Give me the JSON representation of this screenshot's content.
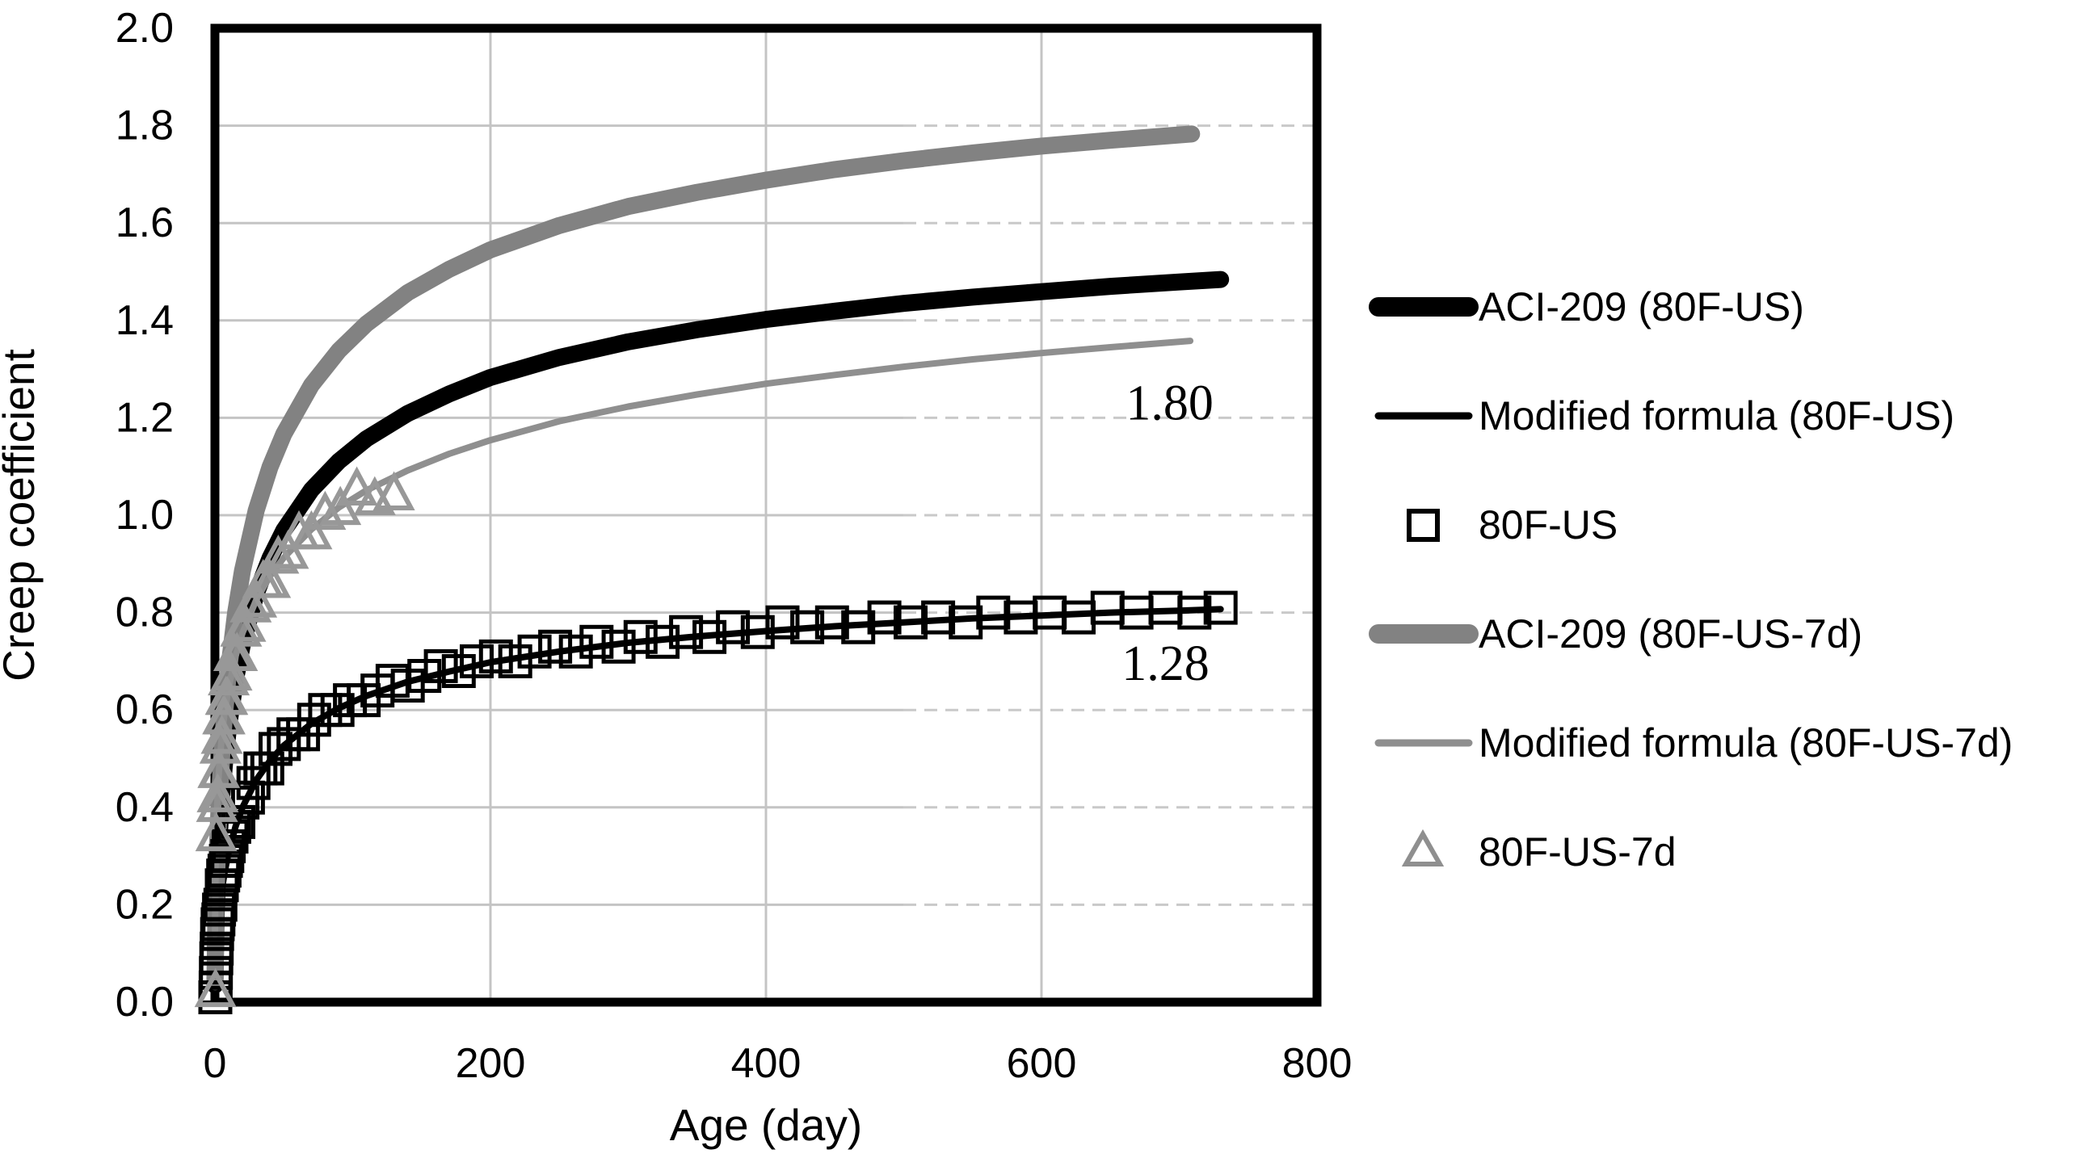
{
  "chart_data": {
    "type": "line",
    "title": "",
    "xlabel": "Age (day)",
    "ylabel": "Creep coefficient",
    "xlim": [
      0,
      800
    ],
    "ylim": [
      0.0,
      2.0
    ],
    "x_ticks": [
      "0",
      "200",
      "400",
      "600",
      "800"
    ],
    "y_ticks": [
      "0.0",
      "0.2",
      "0.4",
      "0.6",
      "0.8",
      "1.0",
      "1.2",
      "1.4",
      "1.6",
      "1.8",
      "2.0"
    ],
    "grid": true,
    "legend_position": "right",
    "annotations": [
      {
        "text": "1.80",
        "x": 693,
        "y": 1.23
      },
      {
        "text": "1.28",
        "x": 690,
        "y": 0.695
      }
    ],
    "series": [
      {
        "name": "ACI-209 (80F-US)",
        "type": "line",
        "color": "#000000",
        "stroke_width": 21,
        "points": [
          [
            0.05,
            0.035
          ],
          [
            0.5,
            0.13
          ],
          [
            1,
            0.19
          ],
          [
            2,
            0.272
          ],
          [
            3,
            0.333
          ],
          [
            5,
            0.423
          ],
          [
            7,
            0.49
          ],
          [
            10,
            0.568
          ],
          [
            15,
            0.664
          ],
          [
            20,
            0.735
          ],
          [
            30,
            0.839
          ],
          [
            40,
            0.912
          ],
          [
            50,
            0.969
          ],
          [
            70,
            1.052
          ],
          [
            90,
            1.111
          ],
          [
            110,
            1.157
          ],
          [
            140,
            1.209
          ],
          [
            170,
            1.249
          ],
          [
            200,
            1.283
          ],
          [
            250,
            1.324
          ],
          [
            300,
            1.356
          ],
          [
            350,
            1.381
          ],
          [
            400,
            1.402
          ],
          [
            450,
            1.419
          ],
          [
            500,
            1.435
          ],
          [
            550,
            1.448
          ],
          [
            600,
            1.459
          ],
          [
            650,
            1.47
          ],
          [
            700,
            1.479
          ],
          [
            730,
            1.484
          ]
        ]
      },
      {
        "name": "Modified formula (80F-US)",
        "type": "line",
        "color": "#000000",
        "stroke_width": 8,
        "points": [
          [
            0.05,
            0.019
          ],
          [
            0.5,
            0.071
          ],
          [
            1,
            0.103
          ],
          [
            2,
            0.148
          ],
          [
            3,
            0.181
          ],
          [
            5,
            0.23
          ],
          [
            7,
            0.266
          ],
          [
            10,
            0.309
          ],
          [
            15,
            0.361
          ],
          [
            20,
            0.4
          ],
          [
            30,
            0.456
          ],
          [
            40,
            0.496
          ],
          [
            50,
            0.527
          ],
          [
            70,
            0.572
          ],
          [
            90,
            0.604
          ],
          [
            110,
            0.629
          ],
          [
            140,
            0.658
          ],
          [
            170,
            0.679
          ],
          [
            200,
            0.698
          ],
          [
            250,
            0.72
          ],
          [
            300,
            0.738
          ],
          [
            350,
            0.751
          ],
          [
            400,
            0.762
          ],
          [
            450,
            0.772
          ],
          [
            500,
            0.78
          ],
          [
            550,
            0.788
          ],
          [
            600,
            0.794
          ],
          [
            650,
            0.8
          ],
          [
            700,
            0.804
          ],
          [
            730,
            0.807
          ]
        ]
      },
      {
        "name": "80F-US",
        "type": "scatter",
        "marker": "square",
        "color": "#000000",
        "marker_size": 37,
        "stroke_width": 5,
        "points": [
          [
            0.3,
            0.01
          ],
          [
            0.5,
            0.03
          ],
          [
            0.7,
            0.06
          ],
          [
            1,
            0.09
          ],
          [
            1.3,
            0.11
          ],
          [
            1.6,
            0.14
          ],
          [
            2,
            0.16
          ],
          [
            2.5,
            0.17
          ],
          [
            3,
            0.19
          ],
          [
            4,
            0.2
          ],
          [
            5,
            0.24
          ],
          [
            6,
            0.26
          ],
          [
            7,
            0.27
          ],
          [
            8,
            0.29
          ],
          [
            9,
            0.3
          ],
          [
            10,
            0.32
          ],
          [
            12,
            0.34
          ],
          [
            14,
            0.36
          ],
          [
            17,
            0.37
          ],
          [
            20,
            0.41
          ],
          [
            24,
            0.42
          ],
          [
            28,
            0.45
          ],
          [
            33,
            0.48
          ],
          [
            38,
            0.48
          ],
          [
            44,
            0.52
          ],
          [
            50,
            0.53
          ],
          [
            57,
            0.55
          ],
          [
            64,
            0.55
          ],
          [
            72,
            0.58
          ],
          [
            80,
            0.6
          ],
          [
            89,
            0.6
          ],
          [
            98,
            0.62
          ],
          [
            108,
            0.62
          ],
          [
            118,
            0.64
          ],
          [
            129,
            0.66
          ],
          [
            140,
            0.65
          ],
          [
            152,
            0.67
          ],
          [
            164,
            0.69
          ],
          [
            177,
            0.68
          ],
          [
            190,
            0.7
          ],
          [
            204,
            0.71
          ],
          [
            218,
            0.7
          ],
          [
            232,
            0.72
          ],
          [
            247,
            0.73
          ],
          [
            262,
            0.72
          ],
          [
            277,
            0.74
          ],
          [
            293,
            0.73
          ],
          [
            309,
            0.75
          ],
          [
            325,
            0.74
          ],
          [
            342,
            0.76
          ],
          [
            359,
            0.75
          ],
          [
            376,
            0.77
          ],
          [
            394,
            0.76
          ],
          [
            412,
            0.78
          ],
          [
            430,
            0.77
          ],
          [
            448,
            0.78
          ],
          [
            467,
            0.77
          ],
          [
            486,
            0.79
          ],
          [
            505,
            0.78
          ],
          [
            525,
            0.79
          ],
          [
            545,
            0.78
          ],
          [
            565,
            0.8
          ],
          [
            585,
            0.79
          ],
          [
            606,
            0.8
          ],
          [
            627,
            0.79
          ],
          [
            648,
            0.81
          ],
          [
            669,
            0.8
          ],
          [
            690,
            0.81
          ],
          [
            711,
            0.8
          ],
          [
            730,
            0.81
          ]
        ]
      },
      {
        "name": "ACI-209 (80F-US-7d)",
        "type": "line",
        "color": "#828282",
        "stroke_width": 21,
        "points": [
          [
            0.05,
            0.042
          ],
          [
            0.5,
            0.157
          ],
          [
            1,
            0.229
          ],
          [
            2,
            0.328
          ],
          [
            3,
            0.401
          ],
          [
            5,
            0.509
          ],
          [
            7,
            0.59
          ],
          [
            10,
            0.684
          ],
          [
            15,
            0.8
          ],
          [
            20,
            0.886
          ],
          [
            30,
            1.01
          ],
          [
            40,
            1.099
          ],
          [
            50,
            1.167
          ],
          [
            70,
            1.267
          ],
          [
            90,
            1.338
          ],
          [
            110,
            1.393
          ],
          [
            140,
            1.457
          ],
          [
            170,
            1.505
          ],
          [
            200,
            1.545
          ],
          [
            250,
            1.595
          ],
          [
            300,
            1.634
          ],
          [
            350,
            1.663
          ],
          [
            400,
            1.688
          ],
          [
            450,
            1.71
          ],
          [
            500,
            1.728
          ],
          [
            550,
            1.744
          ],
          [
            600,
            1.758
          ],
          [
            650,
            1.77
          ],
          [
            709,
            1.783
          ]
        ]
      },
      {
        "name": "Modified formula (80F-US-7d)",
        "type": "line",
        "color": "#8F8F8F",
        "stroke_width": 8,
        "points": [
          [
            0.05,
            0.139
          ],
          [
            0.5,
            0.287
          ],
          [
            1,
            0.352
          ],
          [
            2,
            0.428
          ],
          [
            3,
            0.478
          ],
          [
            5,
            0.546
          ],
          [
            7,
            0.594
          ],
          [
            10,
            0.647
          ],
          [
            15,
            0.711
          ],
          [
            20,
            0.758
          ],
          [
            30,
            0.826
          ],
          [
            40,
            0.875
          ],
          [
            50,
            0.913
          ],
          [
            70,
            0.971
          ],
          [
            90,
            1.016
          ],
          [
            110,
            1.051
          ],
          [
            140,
            1.092
          ],
          [
            170,
            1.126
          ],
          [
            200,
            1.154
          ],
          [
            250,
            1.193
          ],
          [
            300,
            1.223
          ],
          [
            350,
            1.248
          ],
          [
            400,
            1.27
          ],
          [
            450,
            1.288
          ],
          [
            500,
            1.305
          ],
          [
            550,
            1.32
          ],
          [
            600,
            1.333
          ],
          [
            650,
            1.345
          ],
          [
            708,
            1.358
          ]
        ]
      },
      {
        "name": "80F-US-7d",
        "type": "scatter",
        "marker": "triangle",
        "color": "#989898",
        "marker_size": 42,
        "stroke_width": 6,
        "points": [
          [
            0.4,
            0.02
          ],
          [
            1,
            0.34
          ],
          [
            1.5,
            0.4
          ],
          [
            2,
            0.42
          ],
          [
            2.5,
            0.47
          ],
          [
            3,
            0.47
          ],
          [
            4,
            0.52
          ],
          [
            5,
            0.54
          ],
          [
            6,
            0.58
          ],
          [
            7,
            0.58
          ],
          [
            8,
            0.62
          ],
          [
            9,
            0.62
          ],
          [
            10,
            0.66
          ],
          [
            12,
            0.67
          ],
          [
            14,
            0.71
          ],
          [
            16,
            0.71
          ],
          [
            19,
            0.76
          ],
          [
            22,
            0.77
          ],
          [
            26,
            0.81
          ],
          [
            30,
            0.82
          ],
          [
            35,
            0.86
          ],
          [
            40,
            0.86
          ],
          [
            46,
            0.91
          ],
          [
            53,
            0.92
          ],
          [
            61,
            0.96
          ],
          [
            70,
            0.96
          ],
          [
            80,
            1.0
          ],
          [
            91,
            1.01
          ],
          [
            103,
            1.05
          ],
          [
            116,
            1.03
          ],
          [
            130,
            1.04
          ]
        ]
      }
    ],
    "legend": [
      {
        "label": "ACI-209 (80F-US)",
        "swatch": "line-thick",
        "color": "#000000"
      },
      {
        "label": "Modified formula (80F-US)",
        "swatch": "line-thin",
        "color": "#000000"
      },
      {
        "label": "80F-US",
        "swatch": "square",
        "color": "#000000"
      },
      {
        "label": "ACI-209 (80F-US-7d)",
        "swatch": "line-thick",
        "color": "#828282"
      },
      {
        "label": "Modified formula (80F-US-7d)",
        "swatch": "line-thin",
        "color": "#8F8F8F"
      },
      {
        "label": "80F-US-7d",
        "swatch": "triangle",
        "color": "#8F8F8F"
      }
    ]
  },
  "colors": {
    "background": "#ffffff",
    "plot_border": "#000000",
    "gridline": "#C4C4C4",
    "gridline_dashed": "#C9C9C9",
    "text": "#000000"
  }
}
